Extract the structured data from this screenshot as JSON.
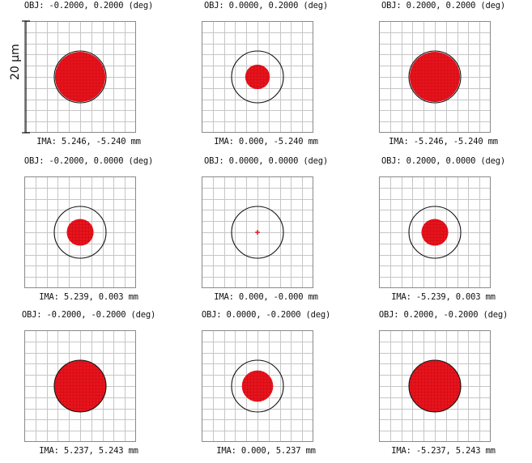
{
  "colors": {
    "spot": "#e8141c",
    "grid": "#c6c6c6",
    "frame": "#8a8a8a",
    "airy": "#111111"
  },
  "scale_bar": {
    "label": "20 µm"
  },
  "spots": [
    {
      "obj": "OBJ: -0.2000, 0.2000 (deg)",
      "ima": "IMA: 5.246, -5.240 mm",
      "spot_radius_frac": 0.45,
      "shape": "blob"
    },
    {
      "obj": "OBJ: 0.0000, 0.2000 (deg)",
      "ima": "IMA: 0.000, -5.240 mm",
      "spot_radius_frac": 0.22,
      "shape": "blob"
    },
    {
      "obj": "OBJ: 0.2000, 0.2000 (deg)",
      "ima": "IMA: -5.246, -5.240 mm",
      "spot_radius_frac": 0.45,
      "shape": "blob"
    },
    {
      "obj": "OBJ: -0.2000, 0.0000 (deg)",
      "ima": "IMA: 5.239, 0.003 mm",
      "spot_radius_frac": 0.24,
      "shape": "blob"
    },
    {
      "obj": "OBJ: 0.0000, 0.0000 (deg)",
      "ima": "IMA: 0.000, -0.000 mm",
      "spot_radius_frac": 0.05,
      "shape": "cross"
    },
    {
      "obj": "OBJ: 0.2000, 0.0000 (deg)",
      "ima": "IMA: -5.239, 0.003 mm",
      "spot_radius_frac": 0.24,
      "shape": "blob"
    },
    {
      "obj": "OBJ: -0.2000, -0.2000 (deg)",
      "ima": "IMA: 5.237, 5.243 mm",
      "spot_radius_frac": 0.46,
      "shape": "blob"
    },
    {
      "obj": "OBJ: 0.0000, -0.2000 (deg)",
      "ima": "IMA: 0.000, 5.237 mm",
      "spot_radius_frac": 0.28,
      "shape": "blob"
    },
    {
      "obj": "OBJ: 0.2000, -0.2000 (deg)",
      "ima": "IMA: -5.237, 5.243 mm",
      "spot_radius_frac": 0.46,
      "shape": "blob"
    }
  ]
}
